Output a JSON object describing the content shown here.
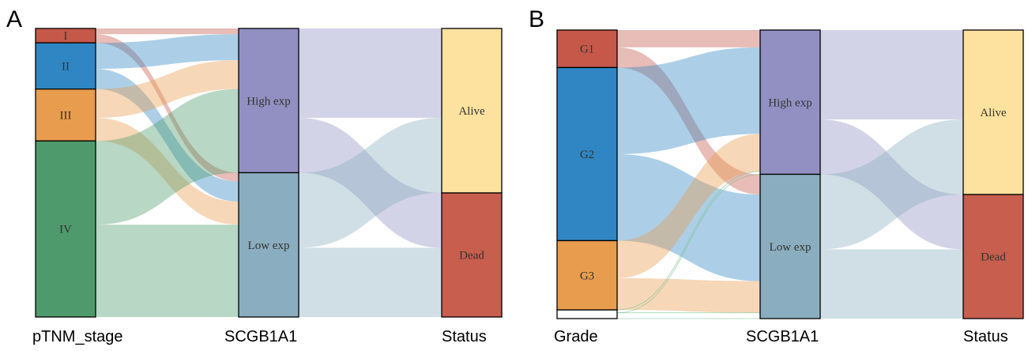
{
  "chart_data": [
    {
      "type": "sankey",
      "panel": "A",
      "columns": [
        "pTNM_stage",
        "SCGB1A1",
        "Status"
      ],
      "nodes": [
        {
          "id": "I",
          "label": "I",
          "column": 0,
          "value": 5,
          "color": "#c6584a"
        },
        {
          "id": "II",
          "label": "II",
          "column": 0,
          "value": 16,
          "color": "#2f86c2"
        },
        {
          "id": "III",
          "label": "III",
          "column": 0,
          "value": 18,
          "color": "#e89c4e"
        },
        {
          "id": "IV",
          "label": "IV",
          "column": 0,
          "value": 61,
          "color": "#4e9a6c"
        },
        {
          "id": "High",
          "label": "High exp",
          "column": 1,
          "value": 50,
          "color": "#9290c2"
        },
        {
          "id": "Low",
          "label": "Low exp",
          "column": 1,
          "value": 50,
          "color": "#8aaebf"
        },
        {
          "id": "Alive",
          "label": "Alive",
          "column": 2,
          "value": 57,
          "color": "#fde29f"
        },
        {
          "id": "Dead",
          "label": "Dead",
          "column": 2,
          "value": 43,
          "color": "#c75e4e"
        }
      ],
      "links": [
        {
          "source": "I",
          "target": "High",
          "value": 2
        },
        {
          "source": "I",
          "target": "Low",
          "value": 3
        },
        {
          "source": "II",
          "target": "High",
          "value": 9
        },
        {
          "source": "II",
          "target": "Low",
          "value": 7
        },
        {
          "source": "III",
          "target": "High",
          "value": 10
        },
        {
          "source": "III",
          "target": "Low",
          "value": 8
        },
        {
          "source": "IV",
          "target": "High",
          "value": 29
        },
        {
          "source": "IV",
          "target": "Low",
          "value": 32
        },
        {
          "source": "High",
          "target": "Alive",
          "value": 31
        },
        {
          "source": "High",
          "target": "Dead",
          "value": 19
        },
        {
          "source": "Low",
          "target": "Alive",
          "value": 26
        },
        {
          "source": "Low",
          "target": "Dead",
          "value": 24
        }
      ]
    },
    {
      "type": "sankey",
      "panel": "B",
      "columns": [
        "Grade",
        "SCGB1A1",
        "Status"
      ],
      "nodes": [
        {
          "id": "G1",
          "label": "G1",
          "column": 0,
          "value": 13,
          "color": "#c6584a"
        },
        {
          "id": "G2",
          "label": "G2",
          "column": 0,
          "value": 60,
          "color": "#2f86c2"
        },
        {
          "id": "G3",
          "label": "G3",
          "column": 0,
          "value": 24,
          "color": "#e89c4e"
        },
        {
          "id": "NA",
          "label": "",
          "column": 0,
          "value": 3,
          "color": "#ffffff"
        },
        {
          "id": "High",
          "label": "High exp",
          "column": 1,
          "value": 50,
          "color": "#9290c2"
        },
        {
          "id": "Low",
          "label": "Low exp",
          "column": 1,
          "value": 50,
          "color": "#8aaebf"
        },
        {
          "id": "Alive",
          "label": "Alive",
          "column": 2,
          "value": 57,
          "color": "#fde29f"
        },
        {
          "id": "Dead",
          "label": "Dead",
          "column": 2,
          "value": 43,
          "color": "#c75e4e"
        }
      ],
      "links": [
        {
          "source": "G1",
          "target": "High",
          "value": 6
        },
        {
          "source": "G1",
          "target": "Low",
          "value": 7
        },
        {
          "source": "G2",
          "target": "High",
          "value": 30
        },
        {
          "source": "G2",
          "target": "Low",
          "value": 30
        },
        {
          "source": "G3",
          "target": "High",
          "value": 13
        },
        {
          "source": "G3",
          "target": "Low",
          "value": 11
        },
        {
          "source": "NA",
          "target": "High",
          "value": 1
        },
        {
          "source": "NA",
          "target": "Low",
          "value": 2
        },
        {
          "source": "High",
          "target": "Alive",
          "value": 31
        },
        {
          "source": "High",
          "target": "Dead",
          "value": 19
        },
        {
          "source": "Low",
          "target": "Alive",
          "value": 26
        },
        {
          "source": "Low",
          "target": "Dead",
          "value": 24
        }
      ]
    }
  ]
}
